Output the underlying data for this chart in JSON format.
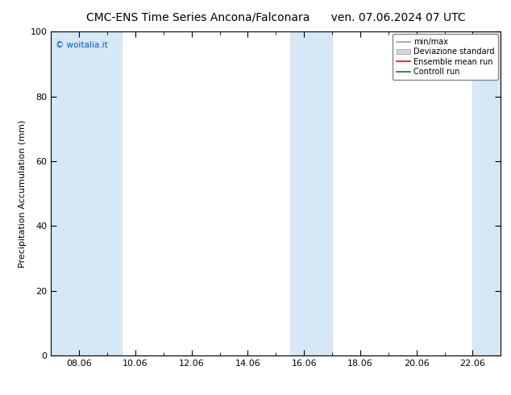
{
  "title_left": "CMC-ENS Time Series Ancona/Falconara",
  "title_right": "ven. 07.06.2024 07 UTC",
  "ylabel": "Precipitation Accumulation (mm)",
  "ylim": [
    0,
    100
  ],
  "yticks": [
    0,
    20,
    40,
    60,
    80,
    100
  ],
  "x_labels": [
    "08.06",
    "10.06",
    "12.06",
    "14.06",
    "16.06",
    "18.06",
    "20.06",
    "22.06"
  ],
  "x_tick_positions": [
    1,
    3,
    5,
    7,
    9,
    11,
    13,
    15
  ],
  "x_min": 0,
  "x_max": 16,
  "shaded_bands": [
    {
      "x_start": 0,
      "x_end": 2.5
    },
    {
      "x_start": 8.5,
      "x_end": 10.0
    },
    {
      "x_start": 15.0,
      "x_end": 16.0
    }
  ],
  "band_color": "#d6e8f5",
  "background_color": "#ffffff",
  "plot_bg_color": "#ffffff",
  "copyright_text": "© woitalia.it",
  "copyright_color": "#0055cc",
  "legend_labels": [
    "min/max",
    "Deviazione standard",
    "Ensemble mean run",
    "Controll run"
  ],
  "legend_line_colors": [
    "#999999",
    "#cccccc",
    "#ff0000",
    "#008800"
  ],
  "title_fontsize": 10,
  "axis_label_fontsize": 8,
  "tick_fontsize": 8,
  "legend_fontsize": 7
}
